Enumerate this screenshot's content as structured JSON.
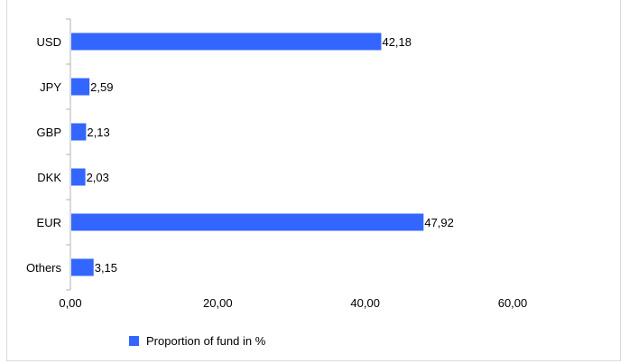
{
  "chart_data": {
    "type": "bar",
    "orientation": "horizontal",
    "categories": [
      "USD",
      "JPY",
      "GBP",
      "DKK",
      "EUR",
      "Others"
    ],
    "series": [
      {
        "name": "Proportion of fund in %",
        "values": [
          42.18,
          2.59,
          2.13,
          2.03,
          47.92,
          3.15
        ],
        "labels": [
          "42,18",
          "2,59",
          "2,13",
          "2,03",
          "47,92",
          "3,15"
        ]
      }
    ],
    "xlim": [
      0,
      60
    ],
    "xticks": [
      0,
      20,
      40,
      60
    ],
    "xtick_labels": [
      "0,00",
      "20,00",
      "40,00",
      "60,00"
    ],
    "grid": false,
    "legend_position": "bottom",
    "bar_color": "#3366ff"
  },
  "legend": {
    "label": "Proportion of fund in %"
  }
}
